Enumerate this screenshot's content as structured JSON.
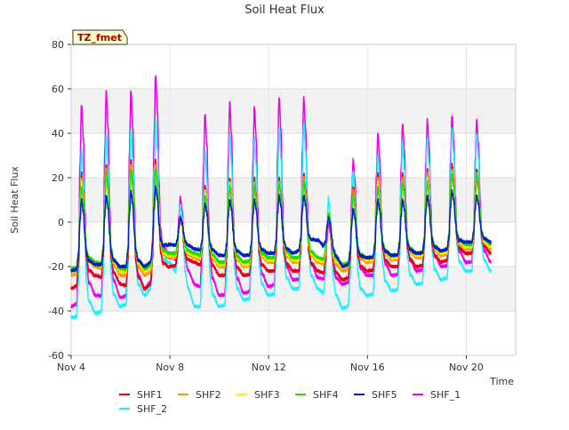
{
  "chart_data": {
    "type": "line",
    "title": "Soil Heat Flux",
    "xlabel": "Time",
    "ylabel": "Soil Heat Flux",
    "badge": "TZ_fmet",
    "x_start": "2023-11-04",
    "x_end": "2023-11-21",
    "xlim": [
      "2023-11-04",
      "2023-11-22"
    ],
    "ylim": [
      -60,
      80
    ],
    "x_ticks": [
      {
        "date": "2023-11-04",
        "label": "Nov 4"
      },
      {
        "date": "2023-11-08",
        "label": "Nov 8"
      },
      {
        "date": "2023-11-12",
        "label": "Nov 12"
      },
      {
        "date": "2023-11-16",
        "label": "Nov 16"
      },
      {
        "date": "2023-11-20",
        "label": "Nov 20"
      }
    ],
    "y_ticks": [
      -60,
      -40,
      -20,
      0,
      20,
      40,
      60,
      80
    ],
    "grid": true,
    "legend_placement": "bottom",
    "series": [
      {
        "name": "SHF1",
        "color": "#e8001c",
        "peak": [
          22,
          26,
          28,
          28,
          2,
          16,
          20,
          20,
          20,
          22,
          4,
          16,
          22,
          22,
          24,
          26,
          24
        ],
        "trough": [
          -30,
          -24,
          -28,
          -30,
          -20,
          -18,
          -24,
          -24,
          -22,
          -22,
          -22,
          -26,
          -22,
          -20,
          -20,
          -18,
          -14
        ]
      },
      {
        "name": "SHF2",
        "color": "#ff9900",
        "peak": [
          20,
          24,
          26,
          26,
          2,
          14,
          18,
          18,
          18,
          20,
          4,
          14,
          20,
          20,
          22,
          24,
          22
        ],
        "trough": [
          -24,
          -20,
          -24,
          -24,
          -16,
          -16,
          -20,
          -20,
          -18,
          -18,
          -18,
          -22,
          -18,
          -17,
          -16,
          -15,
          -12
        ]
      },
      {
        "name": "SHF3",
        "color": "#ffee00",
        "peak": [
          18,
          22,
          24,
          24,
          2,
          14,
          18,
          16,
          18,
          18,
          4,
          12,
          18,
          18,
          20,
          22,
          20
        ],
        "trough": [
          -22,
          -19,
          -22,
          -22,
          -15,
          -15,
          -19,
          -19,
          -17,
          -17,
          -17,
          -20,
          -17,
          -16,
          -15,
          -14,
          -11
        ]
      },
      {
        "name": "SHF4",
        "color": "#22dd00",
        "peak": [
          16,
          22,
          24,
          24,
          2,
          12,
          16,
          16,
          18,
          18,
          4,
          12,
          16,
          18,
          18,
          22,
          20
        ],
        "trough": [
          -21,
          -18,
          -21,
          -21,
          -14,
          -14,
          -18,
          -18,
          -16,
          -16,
          -16,
          -19,
          -16,
          -15,
          -14,
          -13,
          -10
        ]
      },
      {
        "name": "SHF5",
        "color": "#0022bb",
        "peak": [
          10,
          12,
          14,
          16,
          2,
          8,
          10,
          10,
          12,
          12,
          2,
          6,
          10,
          10,
          12,
          14,
          12
        ],
        "trough": [
          -22,
          -19,
          -20,
          -20,
          -10,
          -12,
          -15,
          -15,
          -14,
          -14,
          -8,
          -20,
          -16,
          -15,
          -14,
          -13,
          -9
        ]
      },
      {
        "name": "SHF_1",
        "color": "#ee00ee",
        "peak": [
          53,
          59,
          59,
          66,
          11,
          49,
          54,
          52,
          56,
          56,
          0,
          28,
          40,
          44,
          46,
          48,
          46
        ],
        "trough": [
          -38,
          -33,
          -34,
          -30,
          -14,
          -28,
          -33,
          -32,
          -29,
          -26,
          -25,
          -28,
          -24,
          -24,
          -22,
          -20,
          -18
        ]
      },
      {
        "name": "SHF_2",
        "color": "#22eeff",
        "peak": [
          33,
          40,
          42,
          46,
          8,
          32,
          40,
          38,
          42,
          45,
          11,
          23,
          30,
          36,
          38,
          42,
          40
        ],
        "trough": [
          -43,
          -41,
          -38,
          -33,
          -18,
          -38,
          -38,
          -35,
          -33,
          -30,
          -30,
          -39,
          -33,
          -31,
          -28,
          -26,
          -22
        ]
      }
    ]
  }
}
